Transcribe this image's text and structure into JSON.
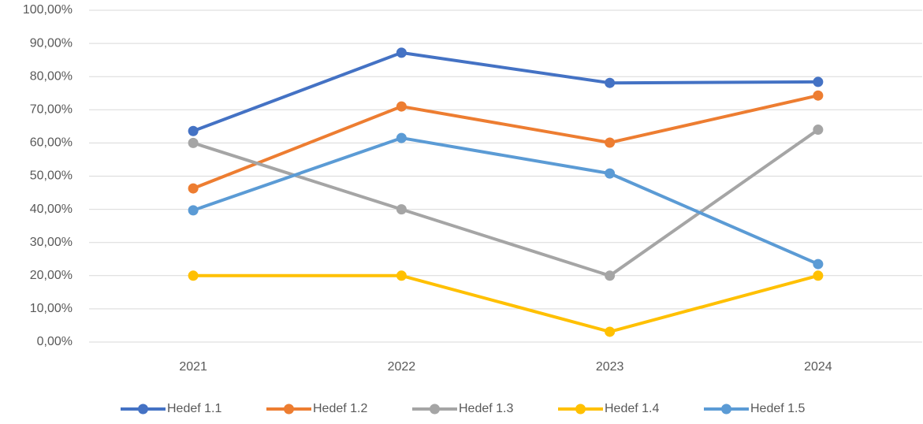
{
  "chart_data": {
    "type": "line",
    "categories": [
      "2021",
      "2022",
      "2023",
      "2024"
    ],
    "series": [
      {
        "name": "Hedef 1.1",
        "color": "#4472c4",
        "values": [
          63.6,
          87.2,
          78.1,
          78.4
        ]
      },
      {
        "name": "Hedef 1.2",
        "color": "#ed7d31",
        "values": [
          46.3,
          71.0,
          60.1,
          74.3
        ]
      },
      {
        "name": "Hedef 1.3",
        "color": "#a5a5a5",
        "values": [
          60,
          40,
          20,
          64
        ]
      },
      {
        "name": "Hedef 1.4",
        "color": "#ffc000",
        "values": [
          20,
          20,
          3.1,
          20
        ]
      },
      {
        "name": "Hedef 1.5",
        "color": "#5b9bd5",
        "values": [
          39.7,
          61.5,
          50.8,
          23.5
        ]
      }
    ],
    "ylim": [
      0,
      100
    ],
    "yticks": [
      {
        "value": 0,
        "label": "0,00%"
      },
      {
        "value": 10,
        "label": "10,00%"
      },
      {
        "value": 20,
        "label": "20,00%"
      },
      {
        "value": 30,
        "label": "30,00%"
      },
      {
        "value": 40,
        "label": "40,00%"
      },
      {
        "value": 50,
        "label": "50,00%"
      },
      {
        "value": 60,
        "label": "60,00%"
      },
      {
        "value": 70,
        "label": "70,00%"
      },
      {
        "value": 80,
        "label": "80,00%"
      },
      {
        "value": 90,
        "label": "90,00%"
      },
      {
        "value": 100,
        "label": "100,00%"
      }
    ],
    "grid": true,
    "legend": "bottom"
  }
}
